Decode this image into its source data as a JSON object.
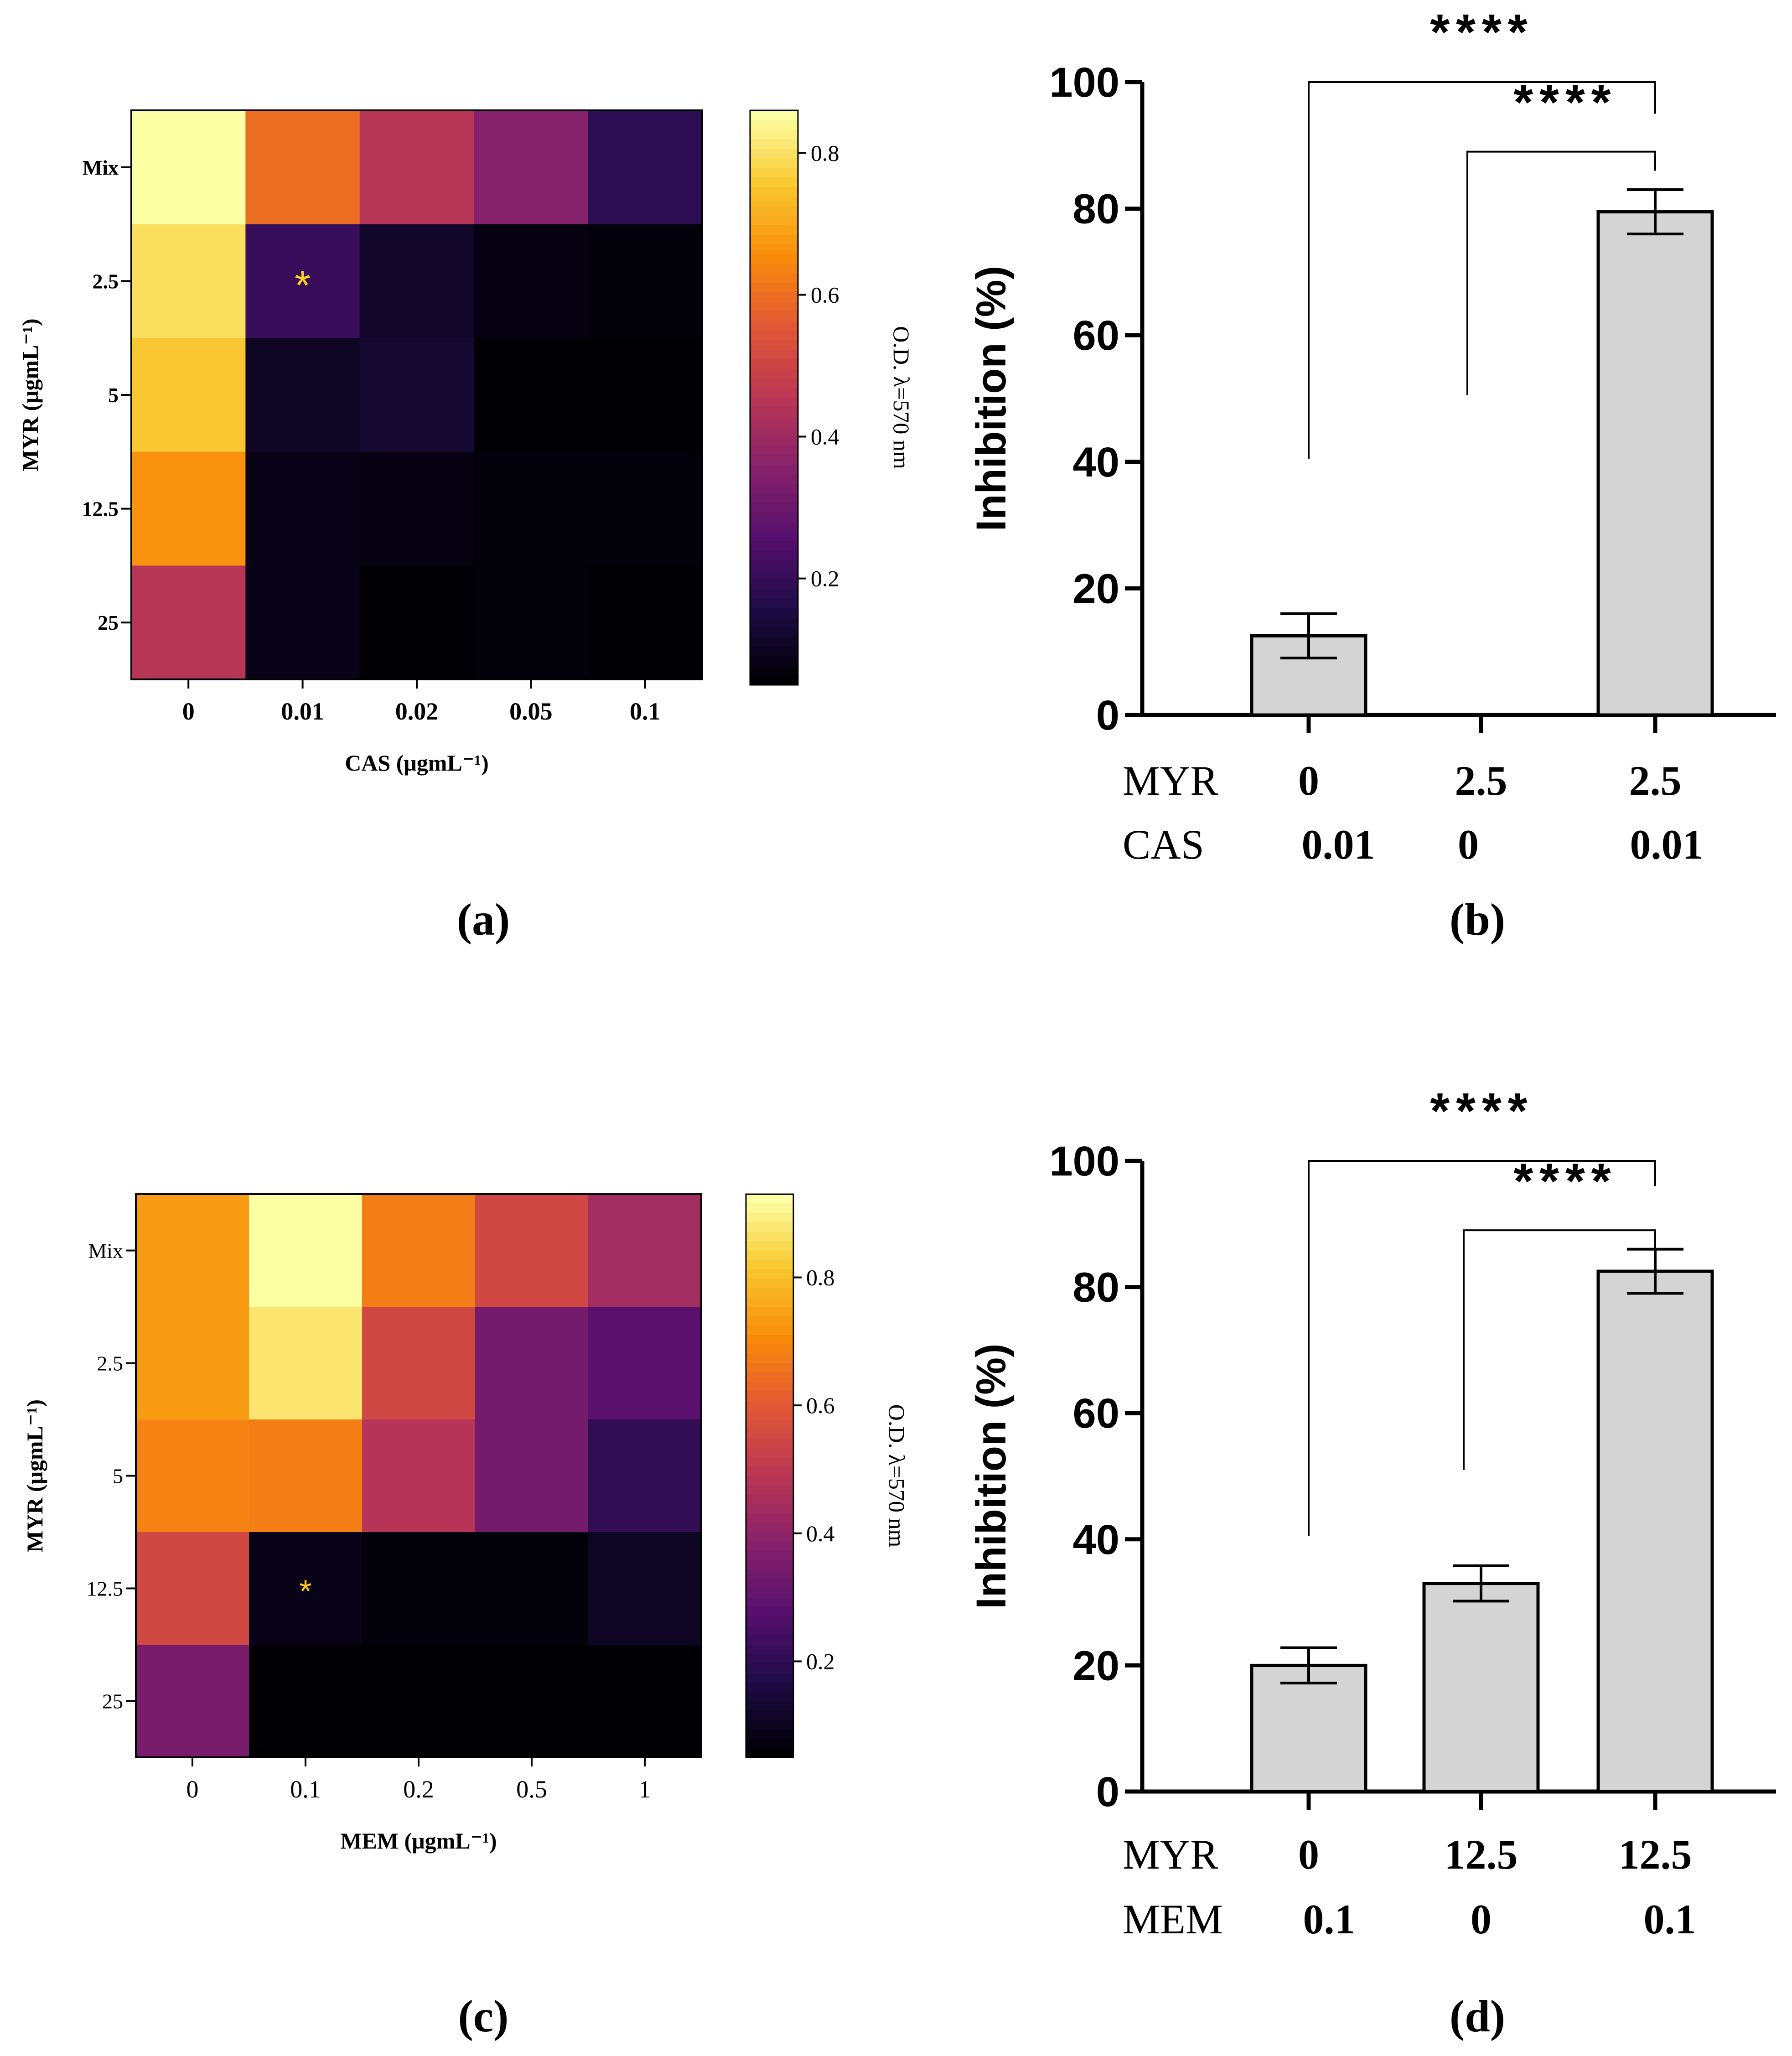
{
  "panel_labels": [
    "(a)",
    "(b)",
    "(c)",
    "(d)"
  ],
  "chart_data": [
    {
      "panel": "(a)",
      "type": "heatmap",
      "xlabel": "CAS (μgmL⁻¹)",
      "ylabel": "MYR (μgmL⁻¹)",
      "x_categories": [
        "0",
        "0.01",
        "0.02",
        "0.05",
        "0.1"
      ],
      "y_categories": [
        "Mix",
        "2.5",
        "5",
        "12.5",
        "25"
      ],
      "values": [
        [
          0.86,
          0.6,
          0.45,
          0.35,
          0.18
        ],
        [
          0.8,
          0.2,
          0.11,
          0.07,
          0.06
        ],
        [
          0.76,
          0.1,
          0.12,
          0.05,
          0.05
        ],
        [
          0.67,
          0.08,
          0.07,
          0.06,
          0.06
        ],
        [
          0.45,
          0.08,
          0.05,
          0.06,
          0.05
        ]
      ],
      "colorbar": {
        "label": "O.D. λ=570 nm",
        "ticks": [
          "0.2",
          "0.4",
          "0.6",
          "0.8"
        ],
        "range": [
          0.05,
          0.86
        ]
      },
      "annotation": {
        "text": "*",
        "row": 1,
        "col": 1
      }
    },
    {
      "panel": "(b)",
      "type": "bar",
      "ylabel": "Inhibition (%)",
      "ylim": [
        0,
        100
      ],
      "yticks": [
        "0",
        "20",
        "40",
        "60",
        "80",
        "100"
      ],
      "row_labels": [
        "MYR",
        "CAS"
      ],
      "categories": [
        [
          "0",
          "0.01"
        ],
        [
          "2.5",
          "0"
        ],
        [
          "2.5",
          "0.01"
        ]
      ],
      "values": [
        12.5,
        0,
        79.5
      ],
      "errors": [
        3.5,
        0,
        3.5
      ],
      "significance": [
        "****",
        "****"
      ]
    },
    {
      "panel": "(c)",
      "type": "heatmap",
      "xlabel": "MEM (μgmL⁻¹)",
      "ylabel": "MYR (μgmL⁻¹)",
      "x_categories": [
        "0",
        "0.1",
        "0.2",
        "0.5",
        "1"
      ],
      "y_categories": [
        "Mix",
        "2.5",
        "5",
        "12.5",
        "25"
      ],
      "values": [
        [
          0.74,
          0.93,
          0.68,
          0.55,
          0.44
        ],
        [
          0.74,
          0.88,
          0.55,
          0.34,
          0.28
        ],
        [
          0.69,
          0.68,
          0.48,
          0.34,
          0.2
        ],
        [
          0.55,
          0.08,
          0.06,
          0.06,
          0.1
        ],
        [
          0.35,
          0.05,
          0.05,
          0.05,
          0.05
        ]
      ],
      "colorbar": {
        "label": "O.D. λ=570 nm",
        "ticks": [
          "0.2",
          "0.4",
          "0.6",
          "0.8"
        ],
        "range": [
          0.05,
          0.93
        ]
      },
      "annotation": {
        "text": "*",
        "row": 3,
        "col": 1
      }
    },
    {
      "panel": "(d)",
      "type": "bar",
      "ylabel": "Inhibition (%)",
      "ylim": [
        0,
        100
      ],
      "yticks": [
        "0",
        "20",
        "40",
        "60",
        "80",
        "100"
      ],
      "row_labels": [
        "MYR",
        "MEM"
      ],
      "categories": [
        [
          "0",
          "0.1"
        ],
        [
          "12.5",
          "0"
        ],
        [
          "12.5",
          "0.1"
        ]
      ],
      "values": [
        20,
        33,
        82.5
      ],
      "errors": [
        2.8,
        2.8,
        3.5
      ],
      "significance": [
        "****",
        "****"
      ]
    }
  ]
}
